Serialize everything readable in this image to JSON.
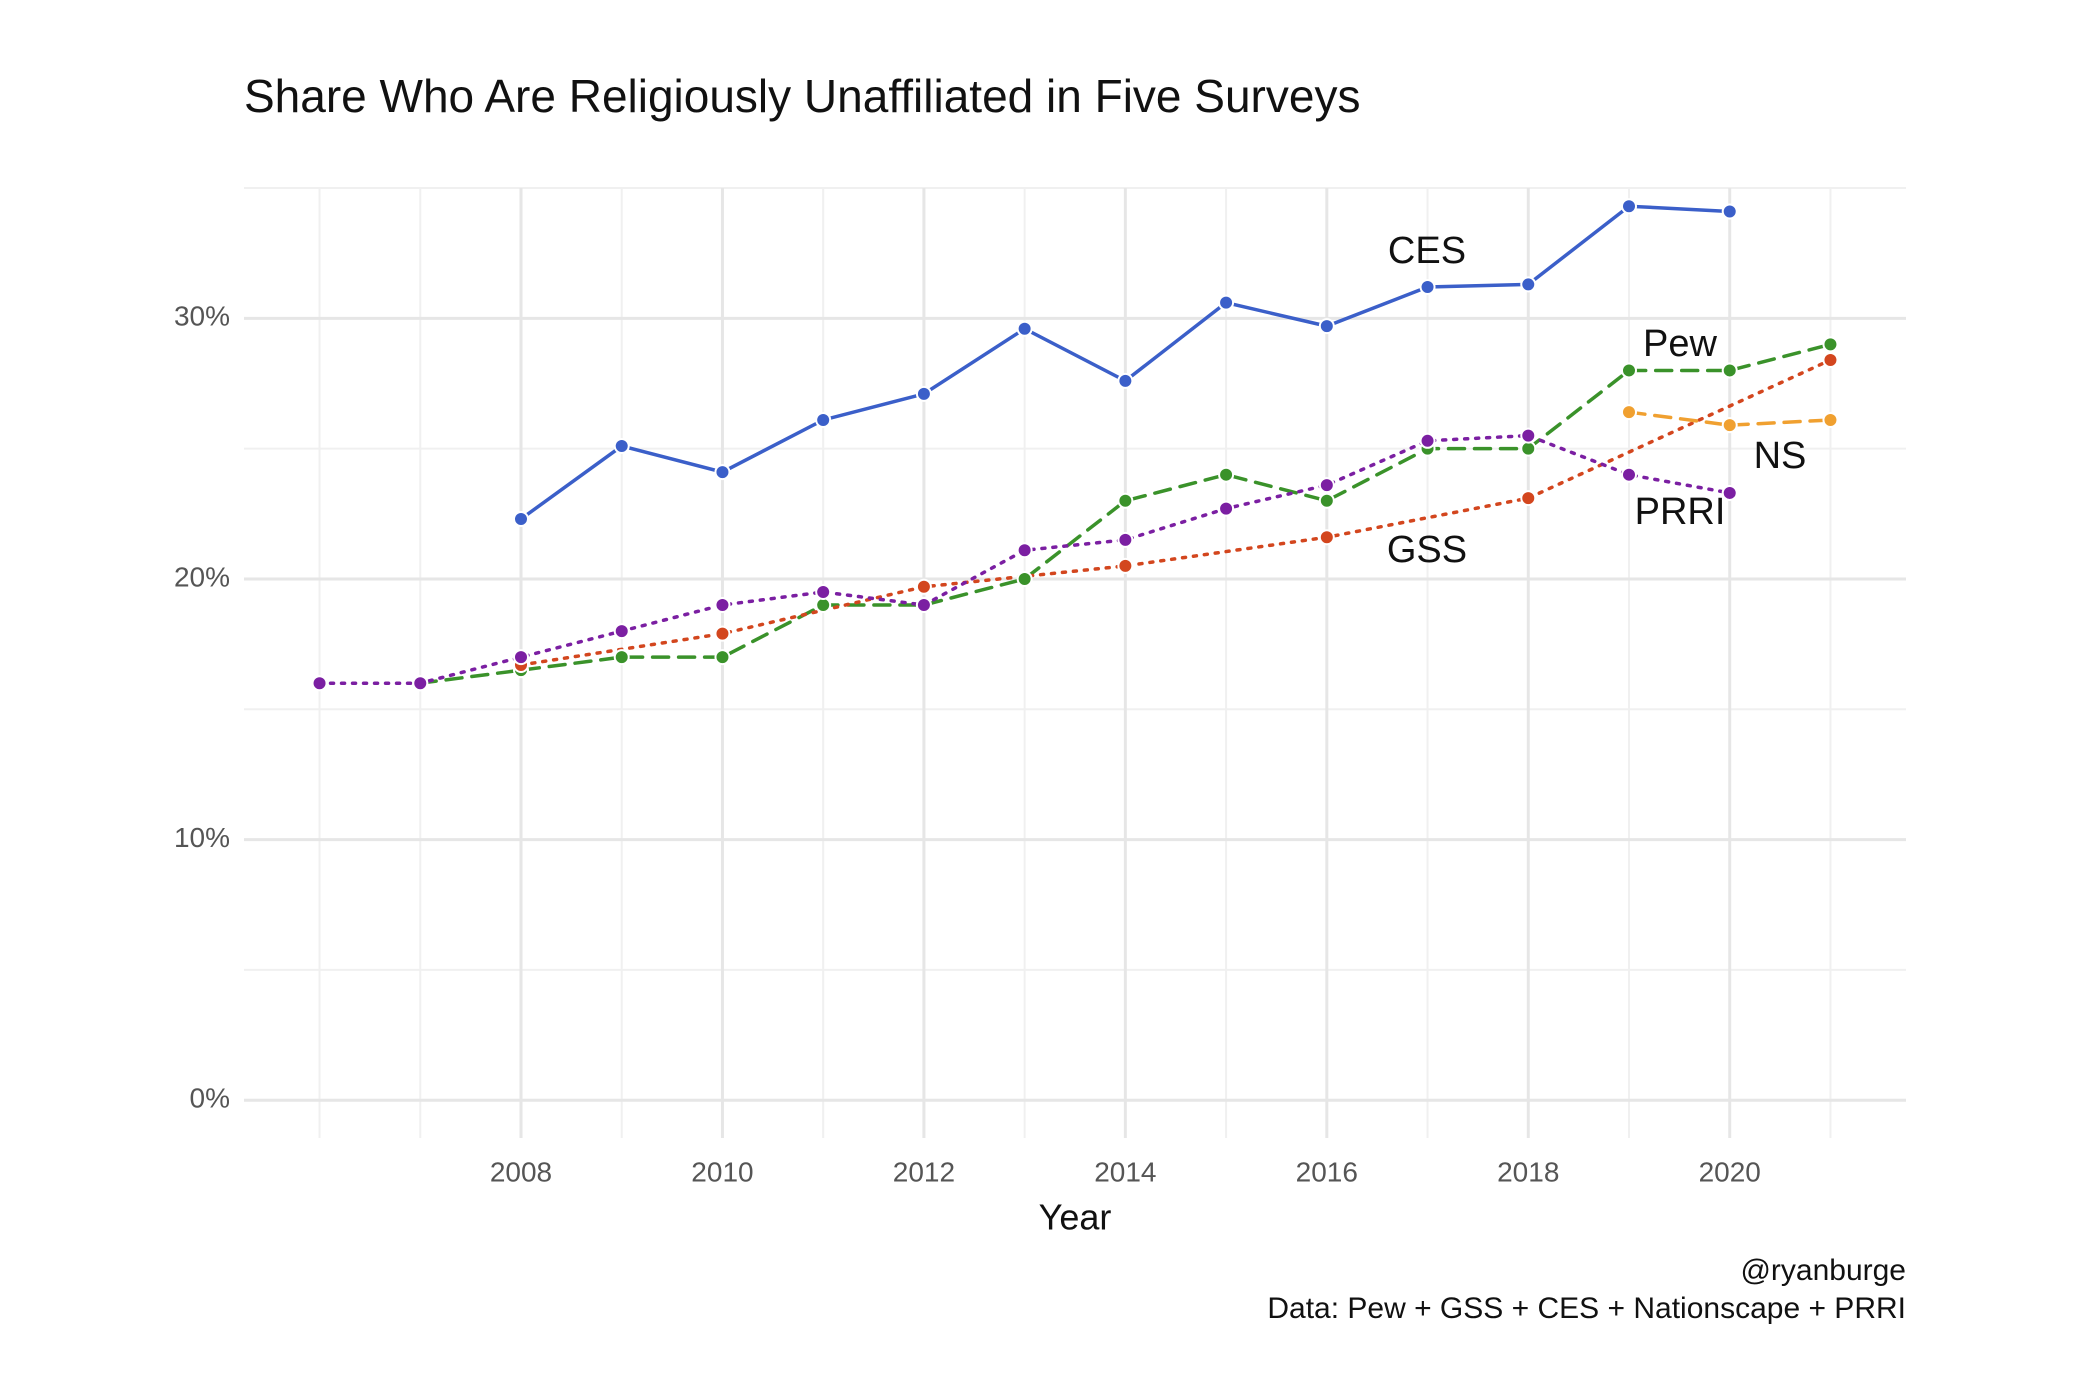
{
  "chart_data": {
    "type": "line",
    "title": "Share Who Are Religiously Unaffiliated in Five Surveys",
    "x_label": "Year",
    "caption": [
      "@ryanburge",
      "Data: Pew + GSS + CES + Nationscape + PRRI"
    ],
    "xlim": [
      2005.25,
      2021.75
    ],
    "xticks": [
      2008,
      2010,
      2012,
      2014,
      2016,
      2018,
      2020
    ],
    "ylim": [
      -1.45,
      35
    ],
    "yticks": [
      {
        "value": 0,
        "label": "0%"
      },
      {
        "value": 10,
        "label": "10%"
      },
      {
        "value": 20,
        "label": "20%"
      },
      {
        "value": 30,
        "label": "30%"
      }
    ],
    "grid": true,
    "series": [
      {
        "name": "CES",
        "color": "#3b5fc9",
        "dash": "solid",
        "x": [
          2008,
          2009,
          2010,
          2011,
          2012,
          2013,
          2014,
          2015,
          2016,
          2017,
          2018,
          2019,
          2020
        ],
        "values": [
          22.3,
          25.1,
          24.1,
          26.1,
          27.1,
          29.6,
          27.6,
          30.6,
          29.7,
          31.2,
          31.3,
          34.3,
          34.1
        ]
      },
      {
        "name": "Pew",
        "color": "#3a922a",
        "dash": "dashed",
        "x": [
          2007,
          2008,
          2009,
          2010,
          2011,
          2012,
          2013,
          2014,
          2015,
          2016,
          2017,
          2018,
          2019,
          2020,
          2021
        ],
        "values": [
          16,
          16.5,
          17,
          17,
          19,
          19,
          20,
          23,
          24,
          23,
          25,
          25,
          28,
          28,
          29
        ]
      },
      {
        "name": "GSS",
        "color": "#d3461e",
        "dash": "dotted",
        "x": [
          2008,
          2010,
          2012,
          2014,
          2016,
          2018,
          2021
        ],
        "values": [
          16.7,
          17.9,
          19.7,
          20.5,
          21.6,
          23.1,
          28.4
        ]
      },
      {
        "name": "NS",
        "color": "#f0a030",
        "dash": "dashed",
        "x": [
          2019,
          2020,
          2021
        ],
        "values": [
          26.4,
          25.9,
          26.1
        ]
      },
      {
        "name": "PRRI",
        "color": "#7b1fa2",
        "dash": "dotted",
        "x": [
          2006,
          2007,
          2008,
          2009,
          2010,
          2011,
          2012,
          2013,
          2014,
          2015,
          2016,
          2017,
          2018,
          2019,
          2020
        ],
        "values": [
          16,
          16,
          17,
          18,
          19,
          19.5,
          19,
          21.1,
          21.5,
          22.7,
          23.6,
          25.3,
          25.5,
          24,
          23.3
        ]
      }
    ]
  }
}
